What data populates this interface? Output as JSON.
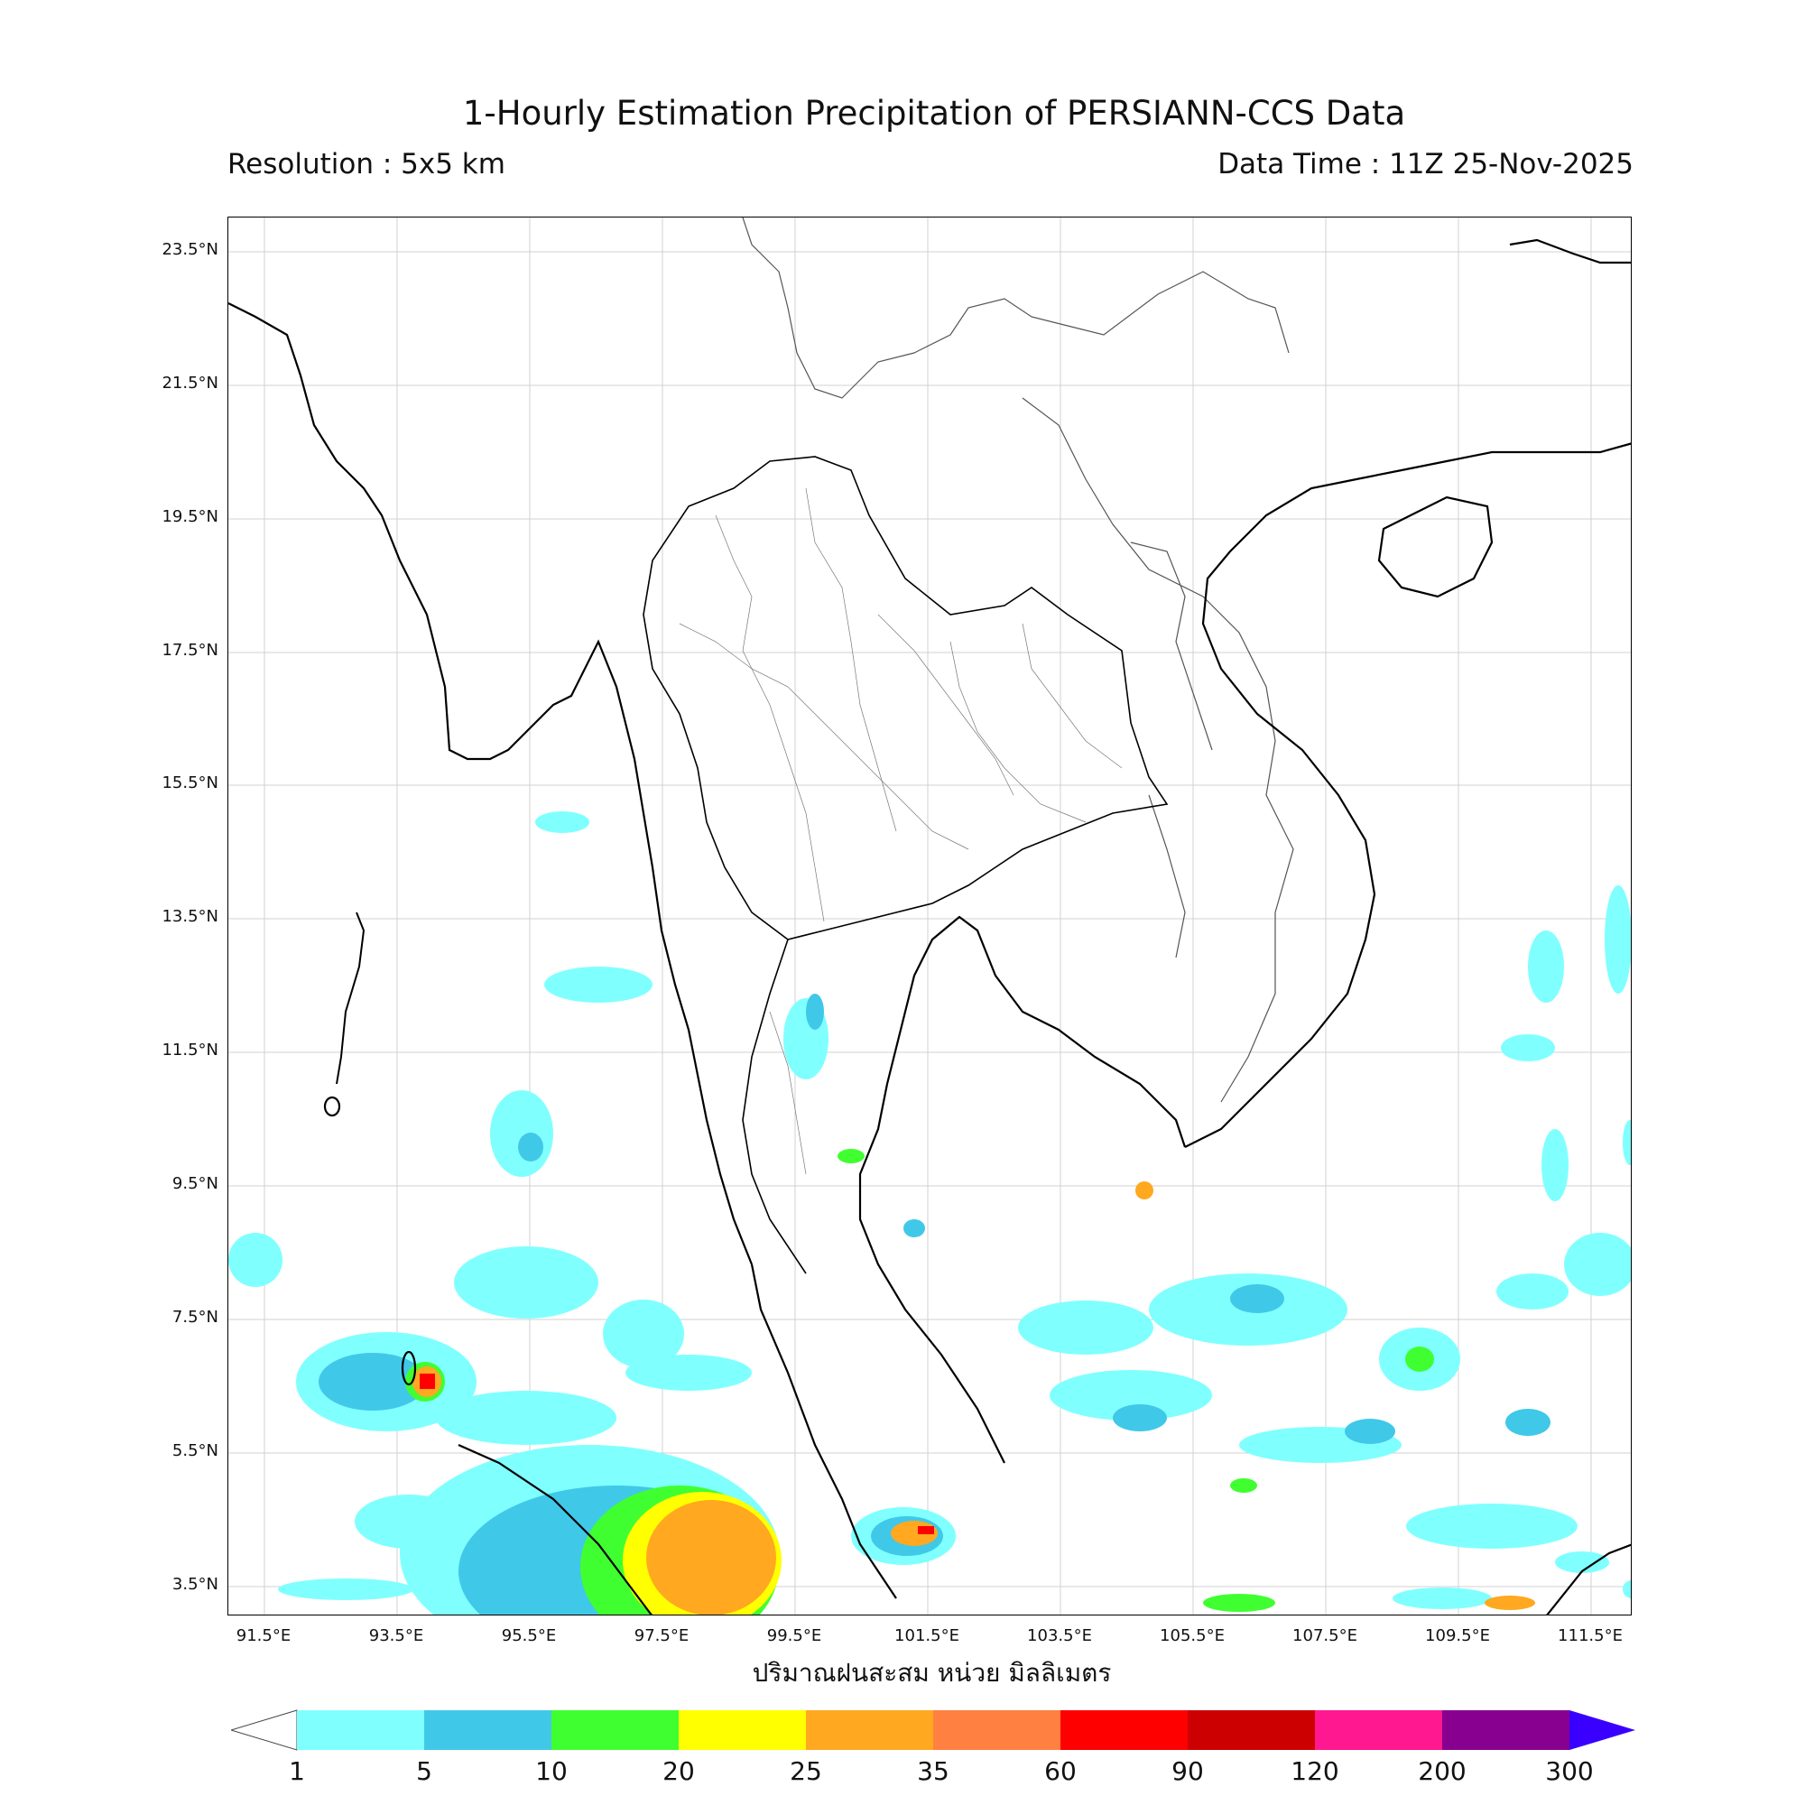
{
  "header": {
    "title": "1-Hourly Estimation Precipitation of PERSIANN-CCS Data",
    "resolution": "Resolution : 5x5 km",
    "data_time": "Data Time : 11Z 25-Nov-2025"
  },
  "map": {
    "lat_labels": [
      "23.5°N",
      "21.5°N",
      "19.5°N",
      "17.5°N",
      "15.5°N",
      "13.5°N",
      "11.5°N",
      "9.5°N",
      "7.5°N",
      "5.5°N",
      "3.5°N"
    ],
    "lon_labels": [
      "91.5°E",
      "93.5°E",
      "95.5°E",
      "97.5°E",
      "99.5°E",
      "101.5°E",
      "103.5°E",
      "105.5°E",
      "107.5°E",
      "109.5°E",
      "111.5°E"
    ],
    "xaxis_title": "ปริมาณฝนสะสม หน่วย มิลลิเมตร",
    "extent": {
      "lon_min": 91.0,
      "lon_max": 112.1,
      "lat_min": 3.0,
      "lat_max": 24.0
    }
  },
  "colorbar": {
    "levels": [
      "1",
      "5",
      "10",
      "20",
      "25",
      "35",
      "60",
      "90",
      "120",
      "200",
      "300"
    ],
    "colors": [
      "#80ffff",
      "#40c8e8",
      "#40ff30",
      "#ffff00",
      "#ffa820",
      "#ff8040",
      "#ff0000",
      "#cc0000",
      "#ff1890",
      "#880090"
    ],
    "over_color": "#3a00ff",
    "under_color": "#ffffff"
  },
  "rain_colors": {
    "light": "#80ffff",
    "moderate": "#40c8e8",
    "green": "#40ff30",
    "yellow": "#ffff00",
    "orange": "#ffa820",
    "red": "#ff0000"
  }
}
